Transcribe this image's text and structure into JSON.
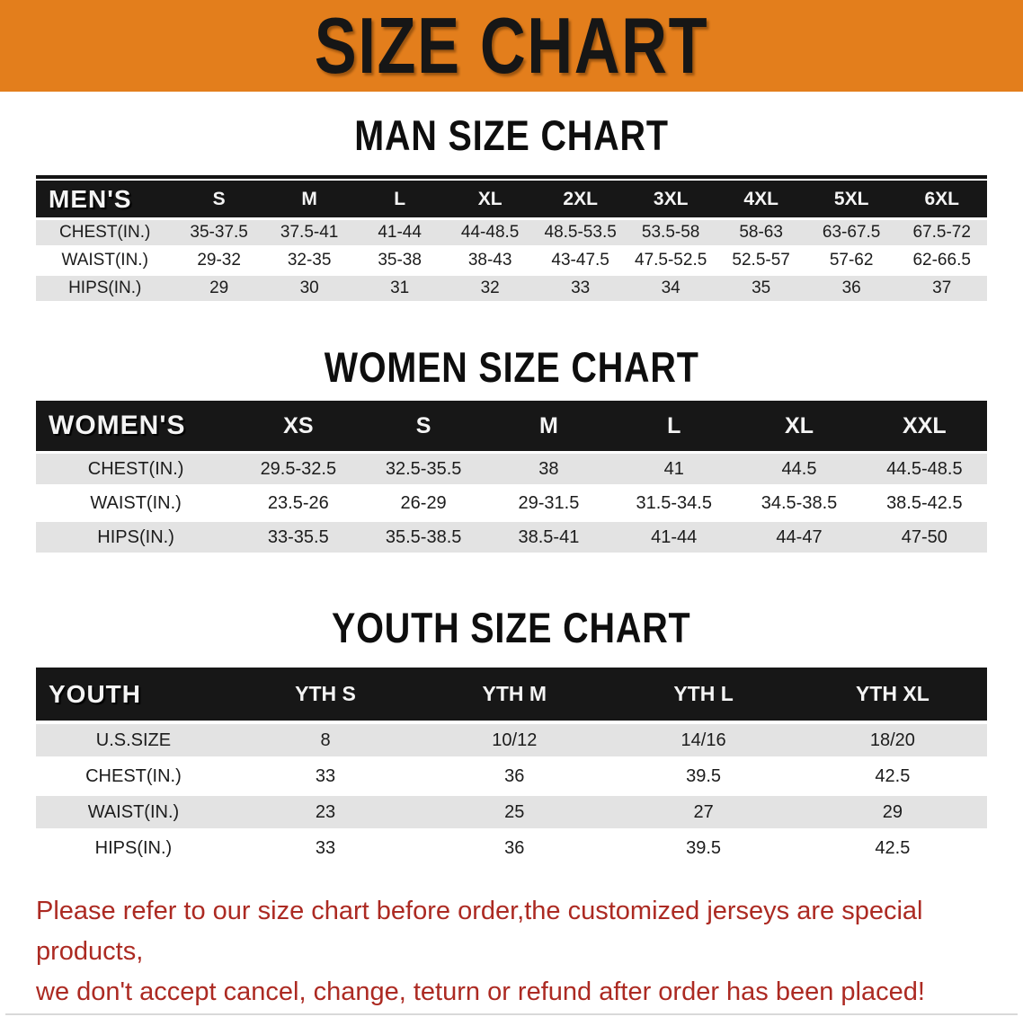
{
  "banner": {
    "title": "SIZE CHART"
  },
  "men": {
    "heading": "MAN SIZE CHART",
    "header_label": "MEN'S",
    "columns": [
      "S",
      "M",
      "L",
      "XL",
      "2XL",
      "3XL",
      "4XL",
      "5XL",
      "6XL"
    ],
    "rows": [
      {
        "label": "CHEST(IN.)",
        "values": [
          "35-37.5",
          "37.5-41",
          "41-44",
          "44-48.5",
          "48.5-53.5",
          "53.5-58",
          "58-63",
          "63-67.5",
          "67.5-72"
        ]
      },
      {
        "label": "WAIST(IN.)",
        "values": [
          "29-32",
          "32-35",
          "35-38",
          "38-43",
          "43-47.5",
          "47.5-52.5",
          "52.5-57",
          "57-62",
          "62-66.5"
        ]
      },
      {
        "label": "HIPS(IN.)",
        "values": [
          "29",
          "30",
          "31",
          "32",
          "33",
          "34",
          "35",
          "36",
          "37"
        ]
      }
    ]
  },
  "women": {
    "heading": "WOMEN SIZE CHART",
    "header_label": "WOMEN'S",
    "columns": [
      "XS",
      "S",
      "M",
      "L",
      "XL",
      "XXL"
    ],
    "rows": [
      {
        "label": "CHEST(IN.)",
        "values": [
          "29.5-32.5",
          "32.5-35.5",
          "38",
          "41",
          "44.5",
          "44.5-48.5"
        ]
      },
      {
        "label": "WAIST(IN.)",
        "values": [
          "23.5-26",
          "26-29",
          "29-31.5",
          "31.5-34.5",
          "34.5-38.5",
          "38.5-42.5"
        ]
      },
      {
        "label": "HIPS(IN.)",
        "values": [
          "33-35.5",
          "35.5-38.5",
          "38.5-41",
          "41-44",
          "44-47",
          "47-50"
        ]
      }
    ]
  },
  "youth": {
    "heading": "YOUTH SIZE CHART",
    "header_label": "YOUTH",
    "columns": [
      "YTH S",
      "YTH M",
      "YTH L",
      "YTH XL"
    ],
    "rows": [
      {
        "label": "U.S.SIZE",
        "values": [
          "8",
          "10/12",
          "14/16",
          "18/20"
        ]
      },
      {
        "label": "CHEST(IN.)",
        "values": [
          "33",
          "36",
          "39.5",
          "42.5"
        ]
      },
      {
        "label": "WAIST(IN.)",
        "values": [
          "23",
          "25",
          "27",
          "29"
        ]
      },
      {
        "label": "HIPS(IN.)",
        "values": [
          "33",
          "36",
          "39.5",
          "42.5"
        ]
      }
    ]
  },
  "footer": {
    "line1": "Please refer to our size chart before order,the customized jerseys are special products,",
    "line2": "we don't accept cancel, change, teturn or refund after order has been placed!"
  },
  "colors": {
    "banner_bg": "#E37E1C",
    "banner_text": "#161616",
    "header_bg": "#171717",
    "header_text": "#F4F4F4",
    "stripe": "#E3E3E3",
    "cell_text": "#1C1C1C",
    "notice": "#AC2A22"
  },
  "table_layout": {
    "men": {
      "label_col_width": "14.5%"
    },
    "women": {
      "label_col_width": "21%"
    },
    "youth": {
      "label_col_width": "20.5%"
    }
  }
}
